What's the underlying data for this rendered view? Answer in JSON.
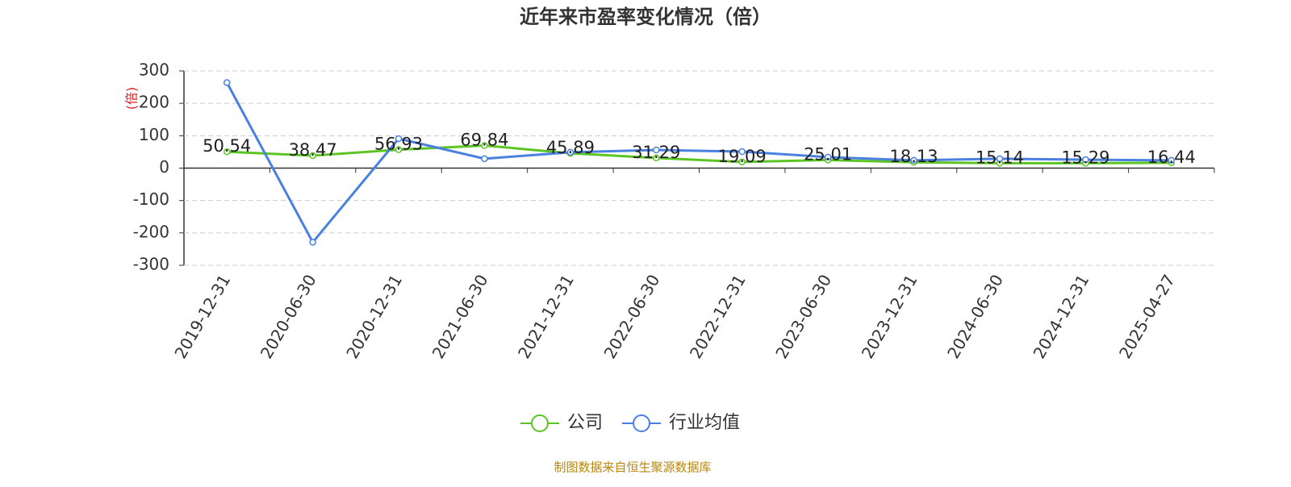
{
  "chart_data": {
    "type": "line",
    "title": "近年来市盈率变化情况（倍）",
    "y_label": "(倍)",
    "source": "制图数据来自恒生聚源数据库",
    "categories": [
      "2019-12-31",
      "2020-06-30",
      "2020-12-31",
      "2021-06-30",
      "2021-12-31",
      "2022-06-30",
      "2022-12-31",
      "2023-06-30",
      "2023-12-31",
      "2024-06-30",
      "2024-12-31",
      "2025-04-27"
    ],
    "series": [
      {
        "name": "公司",
        "color": "#5cc524",
        "values": [
          50.54,
          38.47,
          56.93,
          69.84,
          45.89,
          31.29,
          19.09,
          25.01,
          18.13,
          15.14,
          15.29,
          16.44
        ]
      },
      {
        "name": "行业均值",
        "color": "#4a80e0",
        "values": [
          264,
          -229,
          91,
          29,
          49,
          56,
          51,
          34,
          24,
          29,
          26,
          24
        ]
      }
    ],
    "ylim": [
      -300,
      300
    ],
    "yticks": [
      -300,
      -200,
      -100,
      0,
      100,
      200,
      300
    ],
    "grid": true
  }
}
